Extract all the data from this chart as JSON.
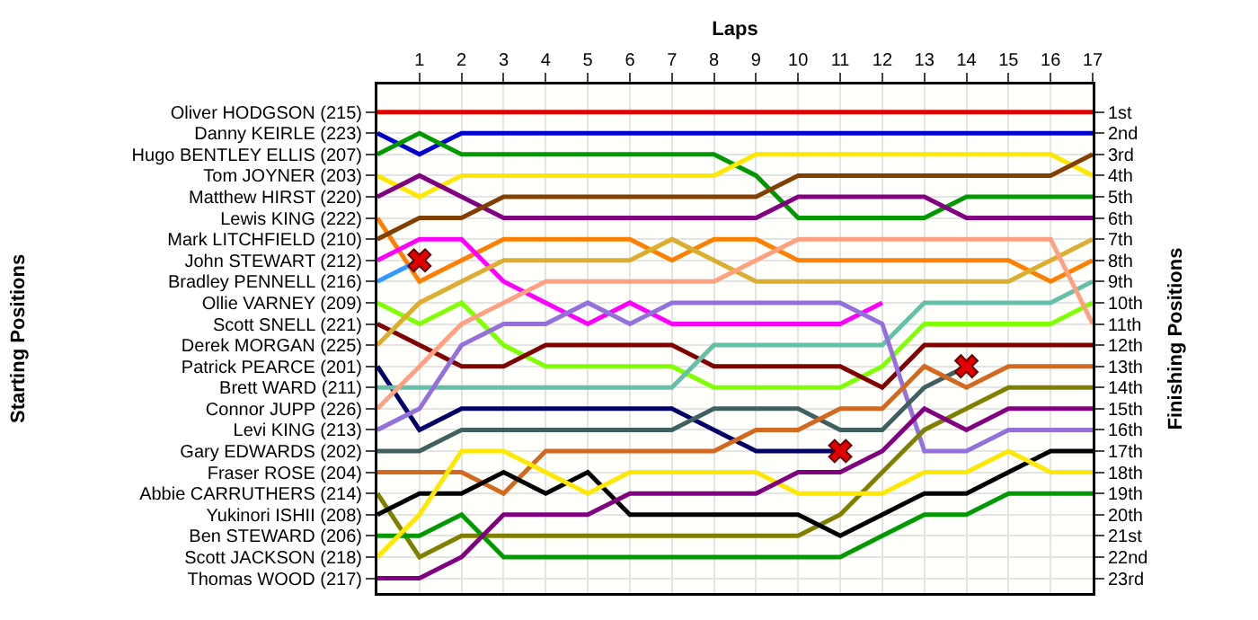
{
  "chart_data": {
    "type": "line",
    "xlabel": "Laps",
    "annotations": [
      "Starting Positions"
    ],
    "y2label": "Finishing Positions",
    "x": [
      0,
      1,
      2,
      3,
      4,
      5,
      6,
      7,
      8,
      9,
      10,
      11,
      12,
      13,
      14,
      15,
      16,
      17
    ],
    "xlim": [
      0,
      17
    ],
    "xticks": [
      1,
      2,
      3,
      4,
      5,
      6,
      7,
      8,
      9,
      10,
      11,
      12,
      13,
      14,
      15,
      16,
      17
    ],
    "y2lim": [
      23.7,
      -0.3
    ],
    "y2ticks": [
      {
        "value": 1,
        "label": "1st"
      },
      {
        "value": 2,
        "label": "2nd"
      },
      {
        "value": 3,
        "label": "3rd"
      },
      {
        "value": 4,
        "label": "4th"
      },
      {
        "value": 5,
        "label": "5th"
      },
      {
        "value": 6,
        "label": "6th"
      },
      {
        "value": 7,
        "label": "7th"
      },
      {
        "value": 8,
        "label": "8th"
      },
      {
        "value": 9,
        "label": "9th"
      },
      {
        "value": 10,
        "label": "10th"
      },
      {
        "value": 11,
        "label": "11th"
      },
      {
        "value": 12,
        "label": "12th"
      },
      {
        "value": 13,
        "label": "13th"
      },
      {
        "value": 14,
        "label": "14th"
      },
      {
        "value": 15,
        "label": "15th"
      },
      {
        "value": 16,
        "label": "16th"
      },
      {
        "value": 17,
        "label": "17th"
      },
      {
        "value": 18,
        "label": "18th"
      },
      {
        "value": 19,
        "label": "19th"
      },
      {
        "value": 20,
        "label": "20th"
      },
      {
        "value": 21,
        "label": "21st"
      },
      {
        "value": 22,
        "label": "22nd"
      },
      {
        "value": 23,
        "label": "23rd"
      }
    ],
    "grid": true,
    "legend": false,
    "series": [
      {
        "name": "Oliver HODGSON (215)",
        "axis": "y2",
        "color": "#e00000",
        "values": [
          1,
          1,
          1,
          1,
          1,
          1,
          1,
          1,
          1,
          1,
          1,
          1,
          1,
          1,
          1,
          1,
          1,
          1
        ]
      },
      {
        "name": "Danny KEIRLE (223)",
        "axis": "y2",
        "color": "#0000d0",
        "values": [
          2,
          3,
          2,
          2,
          2,
          2,
          2,
          2,
          2,
          2,
          2,
          2,
          2,
          2,
          2,
          2,
          2,
          2
        ]
      },
      {
        "name": "Hugo BENTLEY ELLIS (207)",
        "axis": "y2",
        "color": "#009900",
        "values": [
          3,
          2,
          3,
          3,
          3,
          3,
          3,
          3,
          3,
          4,
          6,
          6,
          6,
          6,
          5,
          5,
          5,
          5
        ]
      },
      {
        "name": "Tom JOYNER (203)",
        "axis": "y2",
        "color": "#ffe800",
        "values": [
          4,
          5,
          4,
          4,
          4,
          4,
          4,
          4,
          4,
          3,
          3,
          3,
          3,
          3,
          3,
          3,
          3,
          4
        ]
      },
      {
        "name": "Matthew HIRST (220)",
        "axis": "y2",
        "color": "#800080",
        "values": [
          5,
          4,
          5,
          6,
          6,
          6,
          6,
          6,
          6,
          6,
          5,
          5,
          5,
          5,
          6,
          6,
          6,
          6
        ]
      },
      {
        "name": "Lewis KING (222)",
        "axis": "y2",
        "color": "#ff8000",
        "values": [
          6,
          9,
          8,
          7,
          7,
          7,
          7,
          8,
          7,
          7,
          8,
          8,
          8,
          8,
          8,
          8,
          9,
          8
        ]
      },
      {
        "name": "Mark LITCHFIELD (210)",
        "axis": "y2",
        "color": "#804000",
        "values": [
          7,
          6,
          6,
          5,
          5,
          5,
          5,
          5,
          5,
          5,
          4,
          4,
          4,
          4,
          4,
          4,
          4,
          3
        ]
      },
      {
        "name": "John STEWART (212)",
        "axis": "y2",
        "color": "#ff00ff",
        "values": [
          8,
          7,
          7,
          9,
          10,
          11,
          10,
          11,
          11,
          11,
          11,
          11,
          10,
          null,
          null,
          null,
          null,
          null
        ]
      },
      {
        "name": "Bradley PENNELL (216)",
        "axis": "y2",
        "color": "#3399ff",
        "values": [
          9,
          8,
          null,
          null,
          null,
          null,
          null,
          null,
          null,
          null,
          null,
          null,
          null,
          null,
          null,
          null,
          null,
          null
        ]
      },
      {
        "name": "Ollie VARNEY (209)",
        "axis": "y2",
        "color": "#80ff00",
        "values": [
          10,
          11,
          10,
          12,
          13,
          13,
          13,
          13,
          14,
          14,
          14,
          14,
          13,
          11,
          11,
          11,
          11,
          10
        ]
      },
      {
        "name": "Scott SNELL (221)",
        "axis": "y2",
        "color": "#800000",
        "values": [
          11,
          12,
          13,
          13,
          12,
          12,
          12,
          12,
          13,
          13,
          13,
          13,
          14,
          12,
          12,
          12,
          12,
          12
        ]
      },
      {
        "name": "Derek MORGAN (225)",
        "axis": "y2",
        "color": "#dcae30",
        "values": [
          12,
          10,
          9,
          8,
          8,
          8,
          8,
          7,
          8,
          9,
          9,
          9,
          9,
          9,
          9,
          9,
          8,
          7
        ]
      },
      {
        "name": "Patrick PEARCE (201)",
        "axis": "y2",
        "color": "#000066",
        "values": [
          13,
          16,
          15,
          15,
          15,
          15,
          15,
          15,
          16,
          17,
          17,
          17,
          null,
          null,
          null,
          null,
          null,
          null
        ]
      },
      {
        "name": "Brett WARD (211)",
        "axis": "y2",
        "color": "#66c0a8",
        "values": [
          14,
          14,
          14,
          14,
          14,
          14,
          14,
          14,
          12,
          12,
          12,
          12,
          12,
          10,
          10,
          10,
          10,
          9
        ]
      },
      {
        "name": "Connor JUPP (226)",
        "axis": "y2",
        "color": "#ffa080",
        "values": [
          15,
          13,
          11,
          10,
          9,
          9,
          9,
          9,
          9,
          8,
          7,
          7,
          7,
          7,
          7,
          7,
          7,
          11
        ]
      },
      {
        "name": "Levi KING (213)",
        "axis": "y2",
        "color": "#9370db",
        "values": [
          16,
          15,
          12,
          11,
          11,
          10,
          11,
          10,
          10,
          10,
          10,
          10,
          11,
          17,
          17,
          16,
          16,
          16
        ]
      },
      {
        "name": "Gary EDWARDS (202)",
        "axis": "y2",
        "color": "#406060",
        "values": [
          17,
          17,
          16,
          16,
          16,
          16,
          16,
          16,
          15,
          15,
          15,
          16,
          16,
          14,
          13,
          null,
          null,
          null
        ]
      },
      {
        "name": "Fraser ROSE (204)",
        "axis": "y2",
        "color": "#d2691e",
        "values": [
          18,
          18,
          18,
          19,
          17,
          17,
          17,
          17,
          17,
          16,
          16,
          15,
          15,
          13,
          14,
          13,
          13,
          13
        ]
      },
      {
        "name": "Abbie CARRUTHERS (214)",
        "axis": "y2",
        "color": "#808000",
        "values": [
          19,
          22,
          21,
          21,
          21,
          21,
          21,
          21,
          21,
          21,
          21,
          20,
          18,
          16,
          15,
          14,
          14,
          14
        ]
      },
      {
        "name": "Yukinori ISHII (208)",
        "axis": "y2",
        "color": "#000000",
        "values": [
          20,
          19,
          19,
          18,
          19,
          18,
          20,
          20,
          20,
          20,
          20,
          21,
          20,
          19,
          19,
          18,
          17,
          17
        ]
      },
      {
        "name": "Ben STEWARD (206)",
        "axis": "y2",
        "color": "#009900",
        "values": [
          21,
          21,
          20,
          22,
          22,
          22,
          22,
          22,
          22,
          22,
          22,
          22,
          21,
          20,
          20,
          19,
          19,
          19
        ]
      },
      {
        "name": "Scott JACKSON (218)",
        "axis": "y2",
        "color": "#ffe800",
        "values": [
          22,
          20,
          17,
          17,
          18,
          19,
          18,
          18,
          18,
          18,
          19,
          19,
          19,
          18,
          18,
          17,
          18,
          18
        ]
      },
      {
        "name": "Thomas WOOD (217)",
        "axis": "y2",
        "color": "#800080",
        "values": [
          23,
          23,
          22,
          20,
          20,
          20,
          19,
          19,
          19,
          19,
          18,
          18,
          17,
          15,
          16,
          15,
          15,
          15
        ]
      },
      {
        "type": "scatter",
        "axis": "y2",
        "marker": "cross",
        "color": "#e00000",
        "x": [
          1,
          11,
          14
        ],
        "values": [
          8,
          17,
          13
        ]
      }
    ]
  }
}
